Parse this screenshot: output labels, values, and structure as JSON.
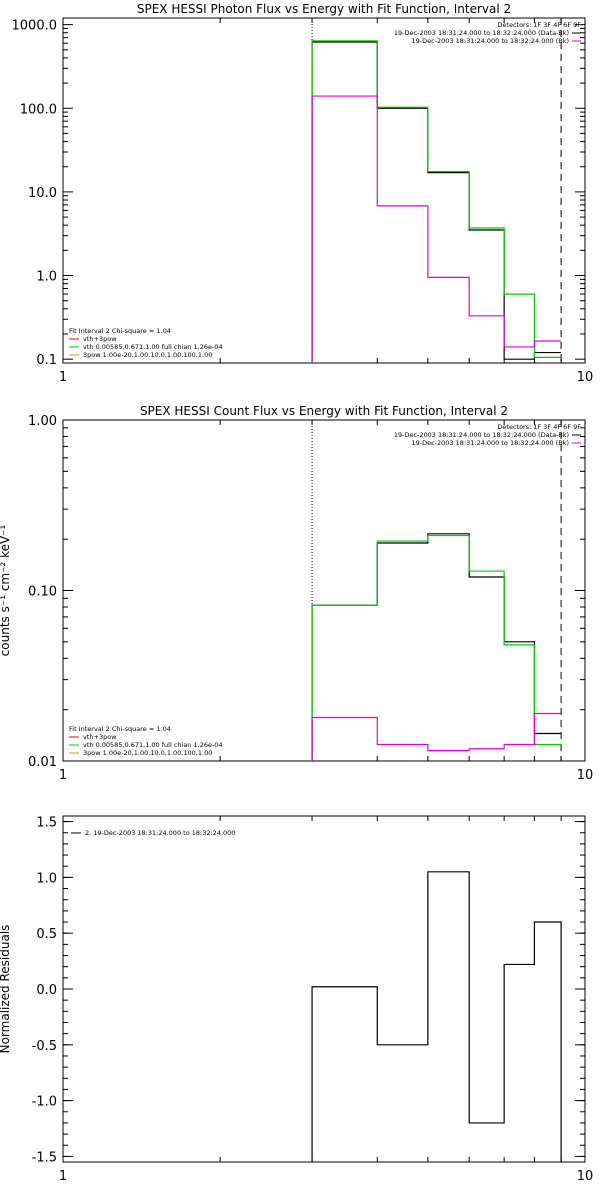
{
  "chart_data": [
    {
      "type": "line",
      "title": "SPEX HESSI Photon Flux vs Energy with Fit Function, Interval 2",
      "xscale": "log",
      "yscale": "log",
      "xlim": [
        1,
        10
      ],
      "ylim": [
        0.09,
        1200
      ],
      "x_ticks": [
        {
          "v": 1,
          "label": "1"
        },
        {
          "v": 10,
          "label": "10"
        }
      ],
      "y_ticks": [
        {
          "v": 0.1,
          "label": "0.1"
        },
        {
          "v": 1,
          "label": "1.0"
        },
        {
          "v": 10,
          "label": "10.0"
        },
        {
          "v": 100,
          "label": "100.0"
        },
        {
          "v": 1000,
          "label": "1000.0"
        }
      ],
      "vlines": [
        {
          "x": 3,
          "style": "dotted"
        },
        {
          "x": 9,
          "style": "dashed"
        }
      ],
      "legend_top": [
        {
          "text": "Detectors: 1F 3F 4F 6F 9F",
          "color": ""
        },
        {
          "text": "19-Dec-2003 18:31:24.000 to 18:32:24.000 (Data-Bk)",
          "color": "#000000"
        },
        {
          "text": "19-Dec-2003 18:31:24.000 to 18:32:24.000 (Bk)",
          "color": "#e000e0"
        }
      ],
      "legend_bottom": [
        {
          "text": "Fit Interval 2   Chi-square = 1.04",
          "color": ""
        },
        {
          "text": "vth+3pow",
          "color": "#e00000"
        },
        {
          "text": "vth 0.00585,0.671,1.00   full chian 1.26e-04",
          "color": "#00cc00"
        },
        {
          "text": "3pow 1.00e-20,1.00,10.0,1.00,100,1.00",
          "color": "#e0a000"
        }
      ],
      "edges": [
        3,
        4,
        5,
        6,
        7,
        8,
        9
      ],
      "series": [
        {
          "color": "#000000",
          "values": [
            620,
            100,
            17,
            3.5,
            0.1,
            0.12
          ]
        },
        {
          "color": "#00cc00",
          "values": [
            640,
            103,
            17.5,
            3.7,
            0.6,
            0.105
          ]
        },
        {
          "color": "#e000e0",
          "values": [
            140,
            6.8,
            0.95,
            0.33,
            0.14,
            0.165
          ]
        }
      ]
    },
    {
      "type": "line",
      "title": "SPEX HESSI Count Flux vs Energy with Fit Function, Interval 2",
      "ylabel": "counts s⁻¹ cm⁻² keV⁻¹",
      "xscale": "log",
      "yscale": "log",
      "xlim": [
        1,
        10
      ],
      "ylim": [
        0.01,
        1
      ],
      "x_ticks": [
        {
          "v": 1,
          "label": "1"
        },
        {
          "v": 10,
          "label": "10"
        }
      ],
      "y_ticks": [
        {
          "v": 0.01,
          "label": "0.01"
        },
        {
          "v": 0.1,
          "label": "0.10"
        },
        {
          "v": 1,
          "label": "1.00"
        }
      ],
      "vlines": [
        {
          "x": 3,
          "style": "dotted"
        },
        {
          "x": 9,
          "style": "dashed"
        }
      ],
      "legend_top": [
        {
          "text": "Detectors: 1F 3F 4F 6F 9F",
          "color": ""
        },
        {
          "text": "19-Dec-2003 18:31:24.000 to 18:32:24.000 (Data-Bk)",
          "color": "#000000"
        },
        {
          "text": "19-Dec-2003 18:31:24.000 to 18:32:24.000 (Bk)",
          "color": "#e000e0"
        }
      ],
      "legend_bottom": [
        {
          "text": "Fit Interval 2   Chi-square = 1.04",
          "color": ""
        },
        {
          "text": "vth+3pow",
          "color": "#e00000"
        },
        {
          "text": "vth 0.00585,0.671,1.00   full chian 1.26e-04",
          "color": "#00cc00"
        },
        {
          "text": "3pow 1.00e-20,1.00,10.0,1.00,100,1.00",
          "color": "#e0a000"
        }
      ],
      "edges": [
        3,
        4,
        5,
        6,
        7,
        8,
        9
      ],
      "series": [
        {
          "color": "#000000",
          "values": [
            0.082,
            0.19,
            0.215,
            0.12,
            0.05,
            0.0145
          ]
        },
        {
          "color": "#00cc00",
          "values": [
            0.082,
            0.195,
            0.21,
            0.13,
            0.048,
            0.0125
          ]
        },
        {
          "color": "#e000e0",
          "values": [
            0.018,
            0.0125,
            0.0115,
            0.0118,
            0.0125,
            0.019
          ]
        }
      ]
    },
    {
      "type": "line",
      "ylabel": "Normalized Residuals",
      "xscale": "log",
      "yscale": "linear",
      "xlim": [
        1,
        10
      ],
      "ylim": [
        -1.55,
        1.55
      ],
      "x_ticks": [
        {
          "v": 1,
          "label": "1"
        },
        {
          "v": 10,
          "label": "10"
        }
      ],
      "y_ticks": [
        {
          "v": -1.5,
          "label": "-1.5"
        },
        {
          "v": -1.0,
          "label": "-1.0"
        },
        {
          "v": -0.5,
          "label": "-0.5"
        },
        {
          "v": 0,
          "label": "0.0"
        },
        {
          "v": 0.5,
          "label": "0.5"
        },
        {
          "v": 1.0,
          "label": "1.0"
        },
        {
          "v": 1.5,
          "label": "1.5"
        }
      ],
      "vlines": [],
      "legend_top": [],
      "legend_bottom": [],
      "legend_topleft": [
        {
          "text": "2. 19-Dec-2003 18:31:24.000 to 18:32:24.000",
          "color": "#000000"
        }
      ],
      "edges": [
        3,
        4,
        5,
        6,
        7,
        8,
        9
      ],
      "series": [
        {
          "color": "#000000",
          "values": [
            0.02,
            -0.5,
            1.05,
            -1.2,
            0.22,
            0.6
          ],
          "close_down_to": -1.55
        }
      ]
    }
  ]
}
